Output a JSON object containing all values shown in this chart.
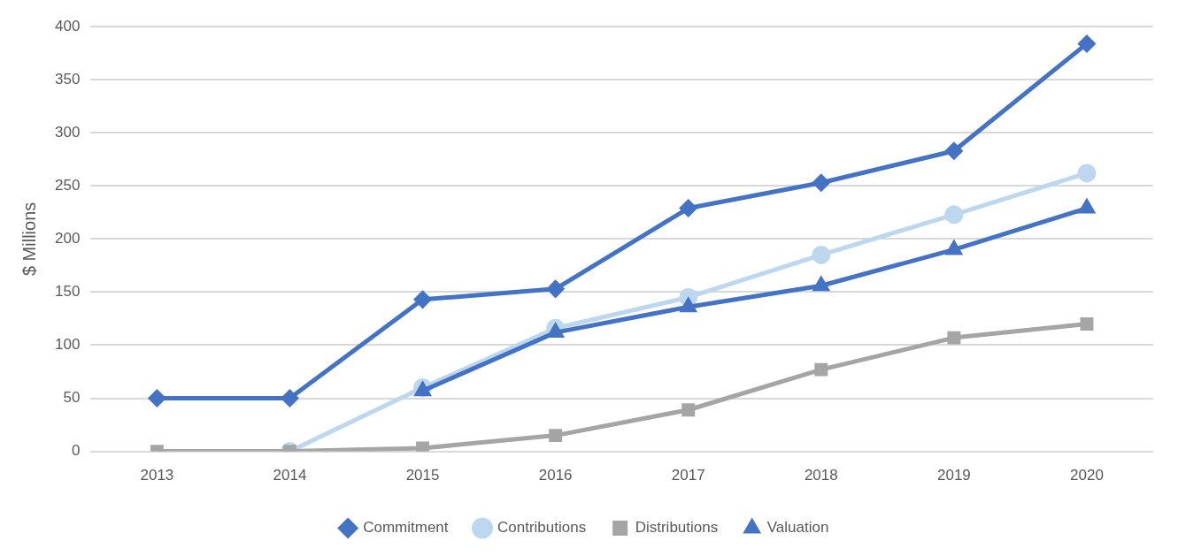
{
  "chart_data": {
    "type": "line",
    "ylabel": "$ Millions",
    "categories": [
      "2013",
      "2014",
      "2015",
      "2016",
      "2017",
      "2018",
      "2019",
      "2020"
    ],
    "series": [
      {
        "name": "Commitment",
        "color": "#4472c4",
        "marker": "diamond",
        "values": [
          50,
          50,
          143,
          153,
          229,
          253,
          283,
          384
        ]
      },
      {
        "name": "Contributions",
        "color": "#bdd7ee",
        "marker": "circle",
        "values": [
          null,
          0,
          60,
          116,
          145,
          185,
          223,
          262
        ]
      },
      {
        "name": "Distributions",
        "color": "#a5a5a5",
        "marker": "square",
        "values": [
          0,
          0,
          3,
          15,
          39,
          77,
          107,
          120
        ]
      },
      {
        "name": "Valuation",
        "color": "#4472c4",
        "marker": "triangle",
        "values": [
          null,
          null,
          57,
          112,
          136,
          156,
          190,
          229
        ]
      }
    ],
    "ylim": [
      0,
      400
    ],
    "yticks": [
      0,
      50,
      100,
      150,
      200,
      250,
      300,
      350,
      400
    ],
    "grid": "y",
    "legend": "bottom",
    "line_style": "solid"
  }
}
